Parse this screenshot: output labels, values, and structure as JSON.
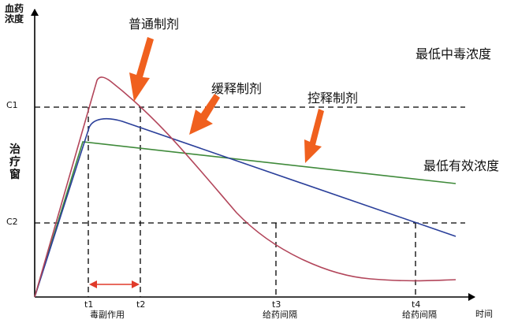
{
  "y_axis_label": [
    "血药",
    "浓度"
  ],
  "x_axis_label": "时间",
  "window_label": [
    "治",
    "疗",
    "窗"
  ],
  "level_labels": {
    "c1": "C1",
    "c2": "C2"
  },
  "annotations": {
    "max_safe": "最低中毒浓度",
    "min_effective": "最低有效浓度",
    "standard": "普通制剂",
    "sustained": "缓释制剂",
    "controlled": "控释制剂"
  },
  "x_ticks": {
    "t1": "t1",
    "t2": "t2",
    "t3": "t3",
    "t4": "t4"
  },
  "interval_labels": {
    "side_effect": "毒副作用",
    "dosing_1": "给药间隔",
    "dosing_2": "给药间隔"
  },
  "colors": {
    "standard": "#b2455a",
    "sustained": "#2a3f9a",
    "controlled": "#3f8a3a",
    "arrow": "#f0601e",
    "span_arrow": "#e03a2a"
  }
}
